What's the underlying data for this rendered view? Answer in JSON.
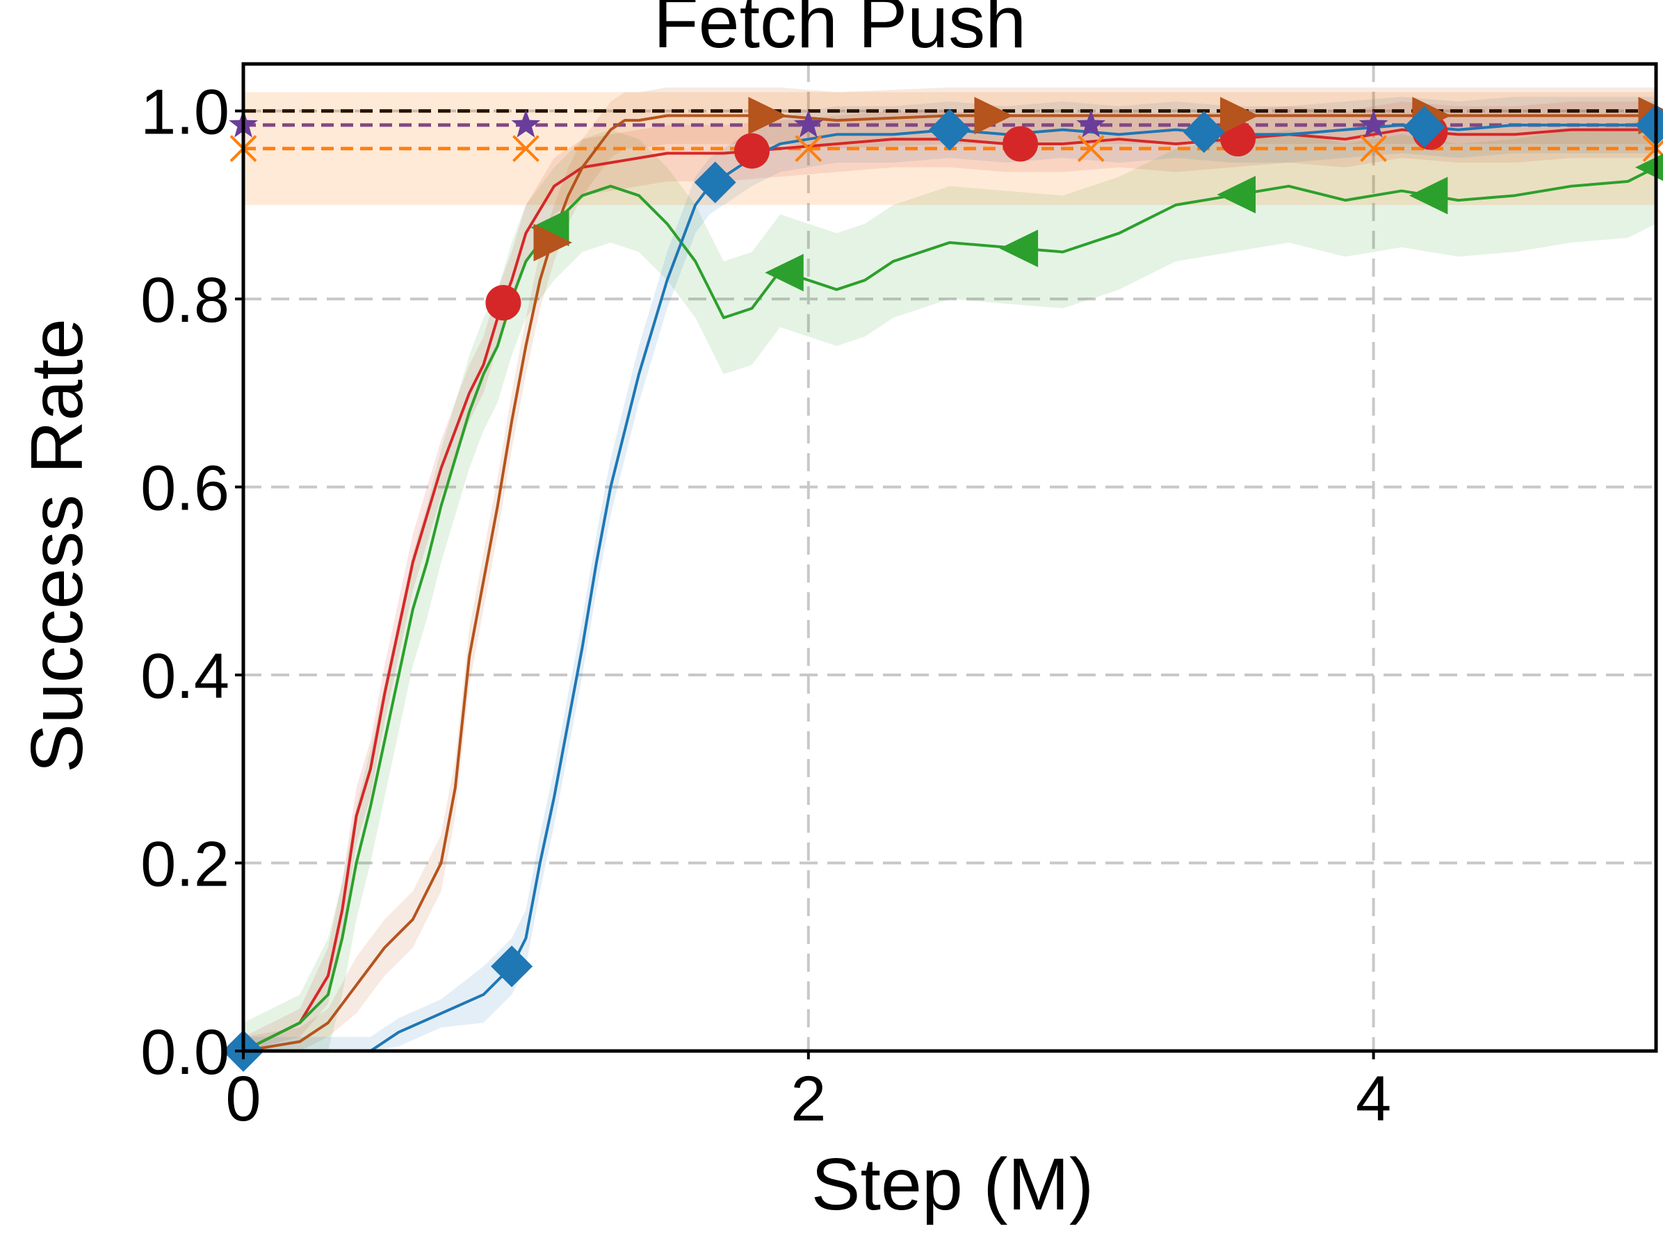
{
  "chart_data": {
    "type": "line",
    "title": "Fetch Push",
    "xlabel": "Step (M)",
    "ylabel": "Success Rate",
    "xlim": [
      0,
      5
    ],
    "ylim": [
      0,
      1.05
    ],
    "xticks": [
      "0",
      "2",
      "4"
    ],
    "xtick_values": [
      0,
      2,
      4
    ],
    "yticks": [
      "0.0",
      "0.2",
      "0.4",
      "0.6",
      "0.8",
      "1.0"
    ],
    "ytick_values": [
      0,
      0.2,
      0.4,
      0.6,
      0.8,
      1.0
    ],
    "grid": true,
    "reference_lines": [
      {
        "y": 1.0,
        "color": "#000000",
        "marker": "none"
      },
      {
        "y": 0.985,
        "color": "#6a3d9a",
        "marker": "star"
      },
      {
        "y": 0.96,
        "color": "#ff7f0e",
        "marker": "x",
        "band": [
          0.9,
          1.02
        ]
      }
    ],
    "series": [
      {
        "color": "#d62728",
        "marker": "circle",
        "x": [
          0,
          0.2,
          0.3,
          0.35,
          0.4,
          0.45,
          0.5,
          0.55,
          0.6,
          0.65,
          0.7,
          0.75,
          0.8,
          0.85,
          0.9,
          0.95,
          1.0,
          1.1,
          1.2,
          1.3,
          1.4,
          1.5,
          1.7,
          1.9,
          2.1,
          2.3,
          2.5,
          2.7,
          2.9,
          3.1,
          3.3,
          3.5,
          3.7,
          3.9,
          4.1,
          4.3,
          4.5,
          4.7,
          5.0
        ],
        "y": [
          0.0,
          0.03,
          0.08,
          0.15,
          0.25,
          0.3,
          0.38,
          0.45,
          0.52,
          0.57,
          0.62,
          0.66,
          0.7,
          0.73,
          0.78,
          0.82,
          0.87,
          0.92,
          0.94,
          0.945,
          0.95,
          0.955,
          0.955,
          0.96,
          0.965,
          0.97,
          0.97,
          0.965,
          0.965,
          0.97,
          0.965,
          0.97,
          0.975,
          0.97,
          0.98,
          0.975,
          0.975,
          0.98,
          0.98
        ],
        "band": 0.03
      },
      {
        "color": "#2ca02c",
        "marker": "triangle-left",
        "x": [
          0,
          0.2,
          0.3,
          0.35,
          0.4,
          0.45,
          0.5,
          0.55,
          0.6,
          0.65,
          0.7,
          0.75,
          0.8,
          0.85,
          0.9,
          0.95,
          1.0,
          1.1,
          1.2,
          1.3,
          1.4,
          1.5,
          1.6,
          1.7,
          1.75,
          1.8,
          1.9,
          2.0,
          2.1,
          2.2,
          2.3,
          2.5,
          2.7,
          2.9,
          3.1,
          3.3,
          3.5,
          3.7,
          3.9,
          4.1,
          4.3,
          4.5,
          4.7,
          4.9,
          5.0
        ],
        "y": [
          0.0,
          0.03,
          0.06,
          0.12,
          0.2,
          0.26,
          0.33,
          0.4,
          0.47,
          0.52,
          0.58,
          0.63,
          0.68,
          0.72,
          0.75,
          0.8,
          0.84,
          0.88,
          0.91,
          0.92,
          0.91,
          0.88,
          0.84,
          0.78,
          0.785,
          0.79,
          0.83,
          0.82,
          0.81,
          0.82,
          0.84,
          0.86,
          0.855,
          0.85,
          0.87,
          0.9,
          0.91,
          0.92,
          0.905,
          0.915,
          0.905,
          0.91,
          0.92,
          0.925,
          0.94
        ],
        "band": 0.06
      },
      {
        "color": "#b5541c",
        "marker": "triangle-right",
        "x": [
          0,
          0.2,
          0.3,
          0.4,
          0.5,
          0.6,
          0.7,
          0.75,
          0.8,
          0.85,
          0.9,
          0.95,
          1.0,
          1.05,
          1.1,
          1.15,
          1.2,
          1.25,
          1.3,
          1.35,
          1.4,
          1.5,
          1.7,
          1.9,
          2.1,
          2.5,
          3.0,
          3.5,
          4.0,
          4.5,
          5.0
        ],
        "y": [
          0.0,
          0.01,
          0.03,
          0.07,
          0.11,
          0.14,
          0.2,
          0.28,
          0.42,
          0.5,
          0.58,
          0.67,
          0.75,
          0.82,
          0.87,
          0.91,
          0.94,
          0.96,
          0.98,
          0.99,
          0.99,
          0.995,
          0.995,
          0.995,
          0.99,
          0.995,
          0.995,
          0.995,
          0.995,
          0.995,
          0.995
        ],
        "band": 0.03
      },
      {
        "color": "#1f77b4",
        "marker": "diamond",
        "x": [
          0,
          0.3,
          0.45,
          0.55,
          0.7,
          0.85,
          0.95,
          1.0,
          1.05,
          1.1,
          1.15,
          1.2,
          1.25,
          1.3,
          1.35,
          1.4,
          1.45,
          1.5,
          1.55,
          1.6,
          1.65,
          1.7,
          1.8,
          1.9,
          2.0,
          2.1,
          2.3,
          2.5,
          2.7,
          2.9,
          3.1,
          3.3,
          3.5,
          3.7,
          3.9,
          4.1,
          4.3,
          4.5,
          4.7,
          5.0
        ],
        "y": [
          0.0,
          0.0,
          0.0,
          0.02,
          0.04,
          0.06,
          0.09,
          0.12,
          0.2,
          0.27,
          0.35,
          0.43,
          0.52,
          0.6,
          0.66,
          0.72,
          0.77,
          0.82,
          0.86,
          0.9,
          0.92,
          0.93,
          0.95,
          0.965,
          0.97,
          0.975,
          0.975,
          0.98,
          0.975,
          0.98,
          0.975,
          0.98,
          0.975,
          0.975,
          0.98,
          0.985,
          0.98,
          0.985,
          0.985,
          0.985
        ],
        "band": 0.03
      }
    ]
  }
}
